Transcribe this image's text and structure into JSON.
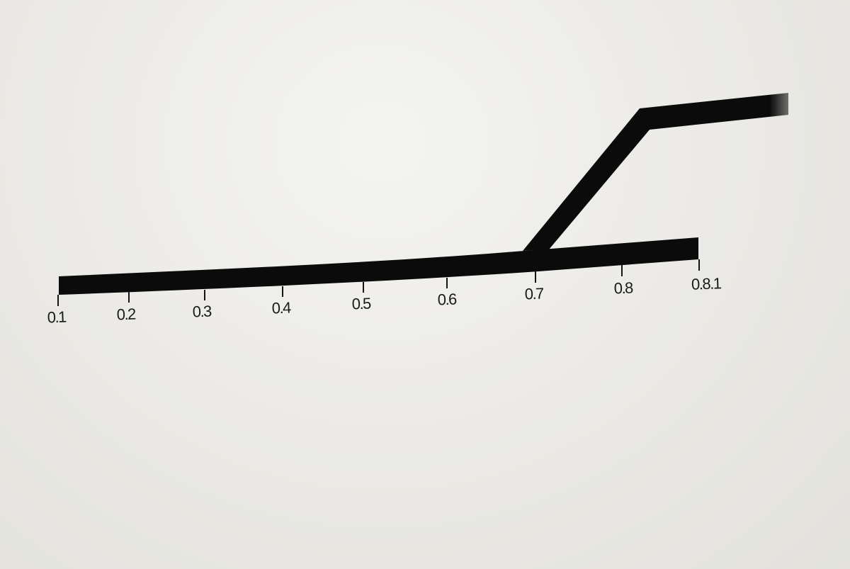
{
  "diagram": {
    "line_color": "#0b0b0b",
    "background_color": "#ebeae6",
    "tick_labels": [
      "0.1",
      "0.2",
      "0.3",
      "0.4",
      "0.5",
      "0.6",
      "0.7",
      "0.8",
      "0.8.1"
    ]
  }
}
